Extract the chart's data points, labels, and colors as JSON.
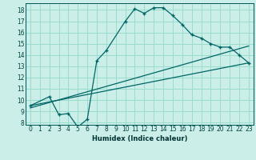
{
  "title": "",
  "xlabel": "Humidex (Indice chaleur)",
  "bg_color": "#cceee8",
  "grid_color": "#99ddcc",
  "line_color": "#006666",
  "xlim": [
    -0.5,
    23.5
  ],
  "ylim": [
    7.8,
    18.6
  ],
  "xticks": [
    0,
    1,
    2,
    3,
    4,
    5,
    6,
    7,
    8,
    9,
    10,
    11,
    12,
    13,
    14,
    15,
    16,
    17,
    18,
    19,
    20,
    21,
    22,
    23
  ],
  "yticks": [
    8,
    9,
    10,
    11,
    12,
    13,
    14,
    15,
    16,
    17,
    18
  ],
  "main_curve_x": [
    0,
    2,
    3,
    4,
    5,
    6,
    7,
    8,
    10,
    11,
    12,
    13,
    14,
    15,
    16,
    17,
    18,
    19,
    20,
    21,
    22,
    23
  ],
  "main_curve_y": [
    9.5,
    10.3,
    8.7,
    8.8,
    7.6,
    8.3,
    13.5,
    14.4,
    17.0,
    18.1,
    17.7,
    18.2,
    18.2,
    17.5,
    16.7,
    15.8,
    15.5,
    15.0,
    14.7,
    14.7,
    14.0,
    13.3
  ],
  "line1_x": [
    0,
    23
  ],
  "line1_y": [
    9.5,
    13.3
  ],
  "line2_x": [
    0,
    23
  ],
  "line2_y": [
    9.3,
    14.8
  ]
}
